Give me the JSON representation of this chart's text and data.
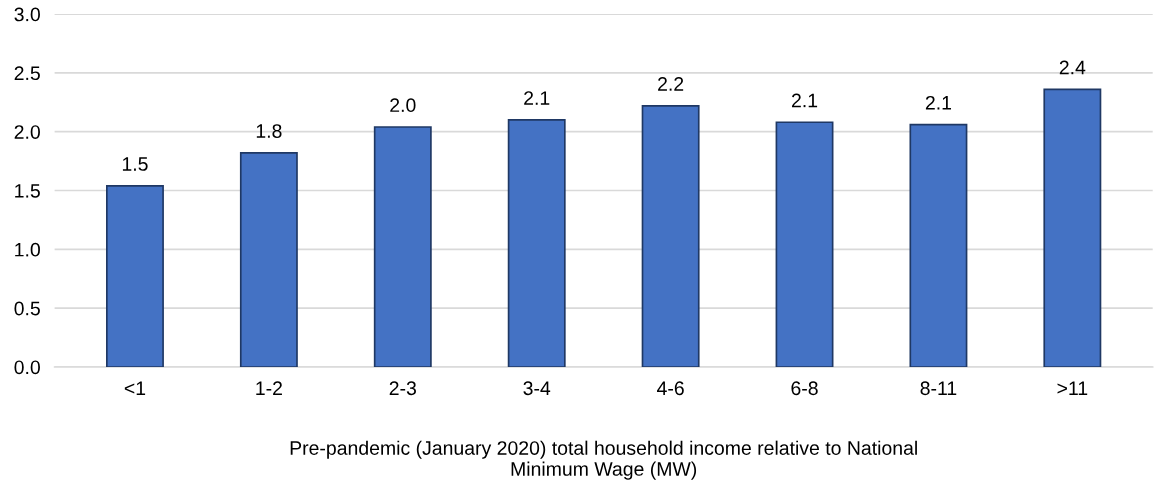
{
  "chart_data": {
    "type": "bar",
    "xlabel": "Pre-pandemic (January 2020) total household income relative to National\nMinimum Wage (MW)",
    "categories": [
      "<1",
      "1-2",
      "2-3",
      "3-4",
      "4-6",
      "6-8",
      "8-11",
      ">11"
    ],
    "values": [
      1.54,
      1.82,
      2.04,
      2.1,
      2.22,
      2.08,
      2.06,
      2.36
    ],
    "value_labels": [
      "1.5",
      "1.8",
      "2.0",
      "2.1",
      "2.2",
      "2.1",
      "2.1",
      "2.4"
    ],
    "color": "#4472c4",
    "ylim": [
      0,
      3.0
    ],
    "yticks": [
      {
        "value": 0,
        "label": "0.0"
      },
      {
        "value": 0.5,
        "label": "0.5"
      },
      {
        "value": 1.0,
        "label": "1.0"
      },
      {
        "value": 1.5,
        "label": "1.5"
      },
      {
        "value": 2.0,
        "label": "2.0"
      },
      {
        "value": 2.5,
        "label": "2.5"
      },
      {
        "value": 3.0,
        "label": "3.0"
      }
    ],
    "grid": "y",
    "legend": false
  }
}
